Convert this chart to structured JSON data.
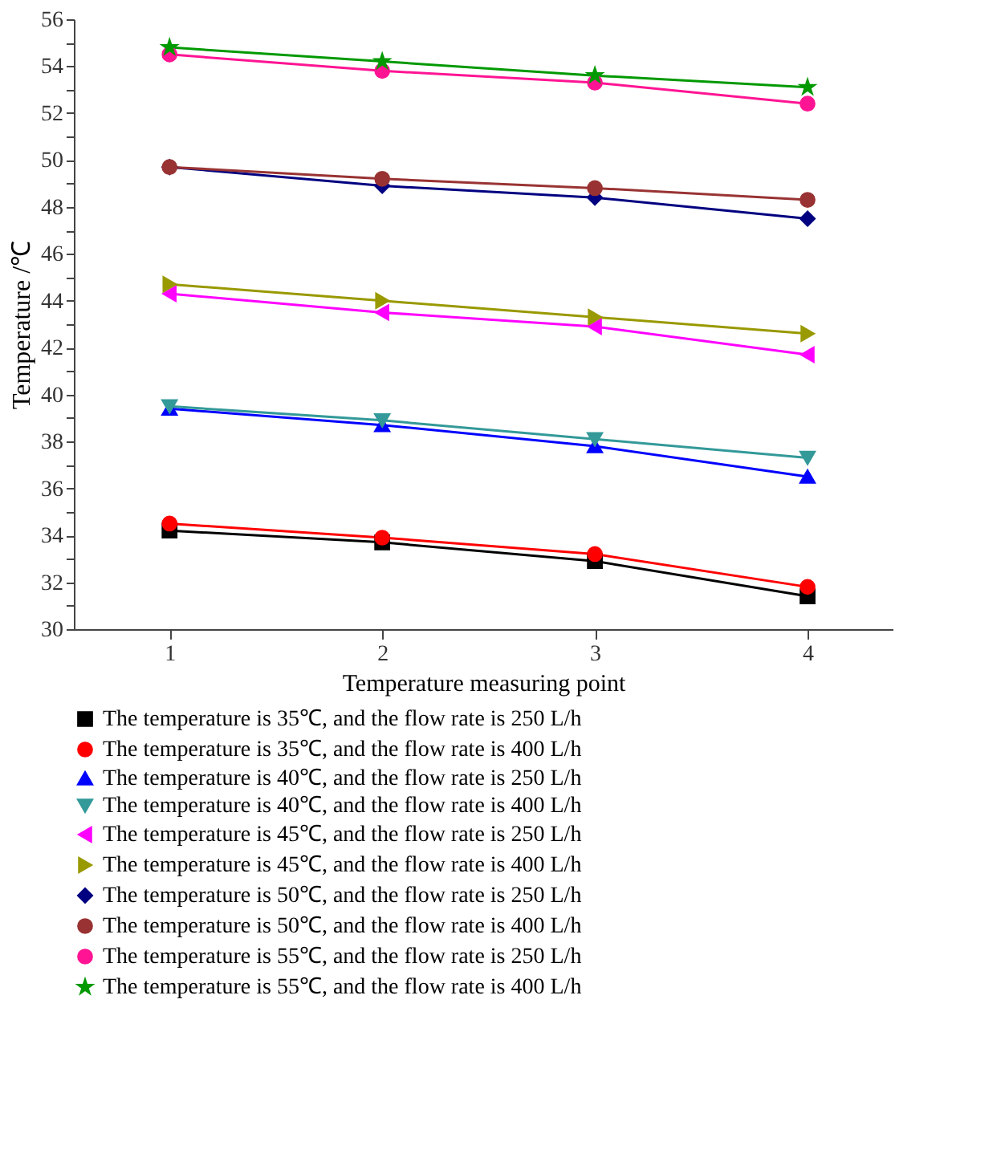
{
  "chart_data": {
    "type": "line",
    "xlabel": "Temperature measuring point",
    "ylabel": "Temperature  /℃",
    "x": [
      1,
      2,
      3,
      4
    ],
    "xlim": [
      0.55,
      4.4
    ],
    "xticks": [
      1,
      2,
      3,
      4
    ],
    "ylim": [
      30,
      56
    ],
    "yticks": [
      30,
      {
        "value": 31,
        "label": null
      },
      32,
      {
        "value": 33,
        "label": null
      },
      34,
      {
        "value": 35,
        "label": null
      },
      36,
      {
        "value": 37,
        "label": null
      },
      38,
      {
        "value": 39,
        "label": null
      },
      40,
      {
        "value": 41,
        "label": null
      },
      42,
      {
        "value": 43,
        "label": null
      },
      44,
      {
        "value": 45,
        "label": null
      },
      46,
      {
        "value": 47,
        "label": null
      },
      48,
      {
        "value": 49,
        "label": null
      },
      50,
      {
        "value": 51,
        "label": null
      },
      52,
      {
        "value": 53,
        "label": null
      },
      54,
      {
        "value": 55,
        "label": null
      },
      56
    ],
    "grid": false,
    "legend": "bottom",
    "line_style": "solid",
    "series": [
      {
        "name": "The temperature is 35℃, and the flow rate is 250 L/h",
        "color": "#000000",
        "marker": "square",
        "values": [
          34.2,
          33.7,
          32.9,
          31.4
        ]
      },
      {
        "name": "The temperature is 35℃, and the flow rate is 400 L/h",
        "color": "#ff0000",
        "marker": "circle",
        "values": [
          34.5,
          33.9,
          33.2,
          31.8
        ]
      },
      {
        "name": "The temperature is 40℃, and the flow rate is 250 L/h",
        "color": "#0000ff",
        "marker": "triangle-up",
        "values": [
          39.4,
          38.7,
          37.8,
          36.5
        ]
      },
      {
        "name": "The temperature is 40℃, and the flow rate is 400 L/h",
        "color": "#339999",
        "marker": "triangle-down",
        "values": [
          39.5,
          38.9,
          38.1,
          37.3
        ]
      },
      {
        "name": "The temperature is 45℃, and the flow rate is 250 L/h",
        "color": "#ff00ff",
        "marker": "triangle-left",
        "values": [
          44.3,
          43.5,
          42.9,
          41.7
        ]
      },
      {
        "name": "The temperature is 45℃, and the flow rate is 400 L/h",
        "color": "#999900",
        "marker": "triangle-right",
        "values": [
          44.7,
          44.0,
          43.3,
          42.6
        ]
      },
      {
        "name": "The temperature is 50℃, and the flow rate is 250 L/h",
        "color": "#000080",
        "marker": "diamond",
        "values": [
          49.7,
          48.9,
          48.4,
          47.5
        ]
      },
      {
        "name": "The temperature is 50℃, and the flow rate is 400 L/h",
        "color": "#993333",
        "marker": "circle",
        "values": [
          49.7,
          49.2,
          48.8,
          48.3
        ]
      },
      {
        "name": "The temperature is 55℃, and the flow rate is 250 L/h",
        "color": "#ff1493",
        "marker": "circle",
        "values": [
          54.5,
          53.8,
          53.3,
          52.4
        ]
      },
      {
        "name": "The temperature is 55℃, and the flow rate is 400 L/h",
        "color": "#009900",
        "marker": "star",
        "values": [
          54.8,
          54.2,
          53.6,
          53.1
        ]
      }
    ]
  }
}
